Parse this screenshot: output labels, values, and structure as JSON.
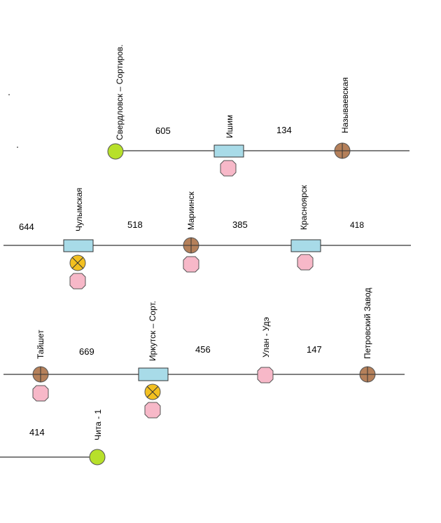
{
  "diagram": {
    "rows": [
      {
        "stations": [
          {
            "name": "Свердловск – Сортиров.",
            "type": "green"
          },
          {
            "name": "Ишим",
            "type": "box"
          },
          {
            "name": "Называевская",
            "type": "brown"
          }
        ],
        "distances": [
          "605",
          "134"
        ]
      },
      {
        "stations": [
          {
            "name": "Чулымская",
            "type": "box"
          },
          {
            "name": "Мариинск",
            "type": "brown"
          },
          {
            "name": "Красноярск",
            "type": "box"
          }
        ],
        "distances": [
          "644",
          "518",
          "385",
          "418"
        ]
      },
      {
        "stations": [
          {
            "name": "Тайшет",
            "type": "brown"
          },
          {
            "name": "Иркутск – Сорт.",
            "type": "box"
          },
          {
            "name": "Улан - Удэ",
            "type": "octagon"
          },
          {
            "name": "Петровский Завод",
            "type": "brown"
          }
        ],
        "distances": [
          "669",
          "456",
          "147"
        ]
      },
      {
        "stations": [
          {
            "name": "Чита - 1",
            "type": "green"
          }
        ],
        "distances": [
          "414"
        ]
      }
    ]
  }
}
